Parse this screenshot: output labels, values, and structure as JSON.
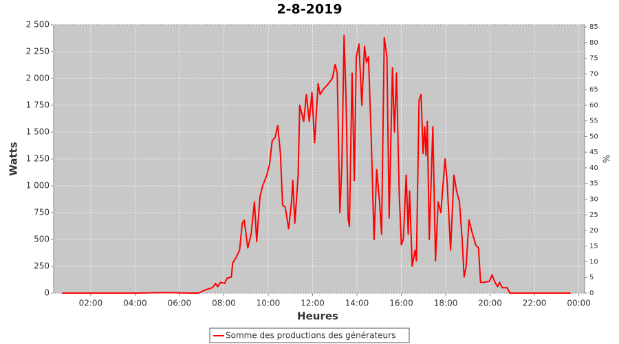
{
  "chart_data": {
    "type": "line",
    "title": "2-8-2019",
    "xlabel": "Heures",
    "ylabel": "Watts",
    "y2label": "%",
    "x": [
      0.71,
      2.55,
      4.09,
      5.32,
      6.55,
      6.86,
      7.17,
      7.48,
      7.63,
      7.72,
      7.85,
      8.03,
      8.15,
      8.34,
      8.4,
      8.55,
      8.71,
      8.83,
      8.92,
      9.08,
      9.23,
      9.38,
      9.48,
      9.63,
      9.75,
      9.94,
      10.06,
      10.18,
      10.31,
      10.43,
      10.55,
      10.65,
      10.77,
      10.92,
      11.05,
      11.11,
      11.2,
      11.35,
      11.42,
      11.6,
      11.72,
      11.85,
      11.97,
      12.09,
      12.25,
      12.34,
      12.49,
      12.71,
      12.89,
      13.02,
      13.11,
      13.23,
      13.32,
      13.42,
      13.51,
      13.6,
      13.66,
      13.78,
      13.88,
      13.97,
      14.09,
      14.22,
      14.34,
      14.43,
      14.52,
      14.65,
      14.77,
      14.89,
      15.02,
      15.11,
      15.23,
      15.35,
      15.45,
      15.6,
      15.69,
      15.78,
      15.91,
      16.0,
      16.09,
      16.22,
      16.31,
      16.37,
      16.49,
      16.62,
      16.68,
      16.8,
      16.89,
      16.98,
      17.05,
      17.11,
      17.17,
      17.26,
      17.42,
      17.54,
      17.66,
      17.78,
      17.97,
      18.06,
      18.22,
      18.37,
      18.49,
      18.62,
      18.74,
      18.83,
      18.92,
      19.05,
      19.17,
      19.35,
      19.48,
      19.57,
      19.72,
      19.97,
      20.09,
      20.22,
      20.34,
      20.43,
      20.55,
      20.77,
      20.89,
      21.94,
      23.63
    ],
    "series": [
      {
        "name": "Somme des productions des  générateurs",
        "color": "#ff0000",
        "values": [
          0,
          0,
          0,
          5,
          0,
          0,
          30,
          50,
          90,
          60,
          100,
          90,
          140,
          150,
          280,
          330,
          400,
          650,
          680,
          420,
          550,
          850,
          480,
          900,
          1000,
          1100,
          1200,
          1420,
          1450,
          1560,
          1300,
          820,
          800,
          600,
          850,
          1050,
          650,
          1100,
          1750,
          1600,
          1850,
          1600,
          1870,
          1400,
          1950,
          1850,
          1900,
          1950,
          2000,
          2130,
          2050,
          750,
          1200,
          2400,
          1800,
          700,
          620,
          2050,
          1050,
          2200,
          2320,
          1750,
          2300,
          2150,
          2200,
          1400,
          500,
          1150,
          850,
          550,
          2380,
          2200,
          700,
          2100,
          1500,
          2050,
          900,
          450,
          500,
          1100,
          550,
          950,
          250,
          400,
          300,
          1800,
          1850,
          1300,
          1550,
          1280,
          1600,
          500,
          1550,
          300,
          850,
          750,
          1250,
          1050,
          400,
          1100,
          950,
          850,
          500,
          150,
          250,
          680,
          580,
          450,
          420,
          100,
          100,
          110,
          170,
          100,
          60,
          100,
          50,
          50,
          0,
          0,
          0
        ]
      }
    ],
    "xlim": [
      0.33,
      24.26
    ],
    "xticks": [
      {
        "value": 2,
        "label": "02:00"
      },
      {
        "value": 4,
        "label": "04:00"
      },
      {
        "value": 6,
        "label": "06:00"
      },
      {
        "value": 8,
        "label": "08:00"
      },
      {
        "value": 10,
        "label": "10:00"
      },
      {
        "value": 12,
        "label": "12:00"
      },
      {
        "value": 14,
        "label": "14:00"
      },
      {
        "value": 16,
        "label": "16:00"
      },
      {
        "value": 18,
        "label": "18:00"
      },
      {
        "value": 20,
        "label": "20:00"
      },
      {
        "value": 22,
        "label": "22:00"
      },
      {
        "value": 24,
        "label": "00:00"
      }
    ],
    "ylim": [
      0,
      2500
    ],
    "yticks": [
      0,
      250,
      500,
      750,
      {
        "value": 1000,
        "label": "1 000"
      },
      {
        "value": 1250,
        "label": "1 250"
      },
      {
        "value": 1500,
        "label": "1 500"
      },
      {
        "value": 1750,
        "label": "1 750"
      },
      {
        "value": 2000,
        "label": "2 000"
      },
      {
        "value": 2250,
        "label": "2 250"
      },
      {
        "value": 2500,
        "label": "2 500"
      }
    ],
    "y2lim": [
      0,
      85.7
    ],
    "y2ticks": [
      0,
      5,
      10,
      15,
      20,
      25,
      30,
      35,
      40,
      45,
      50,
      55,
      60,
      65,
      70,
      75,
      80,
      85
    ],
    "grid": true
  }
}
